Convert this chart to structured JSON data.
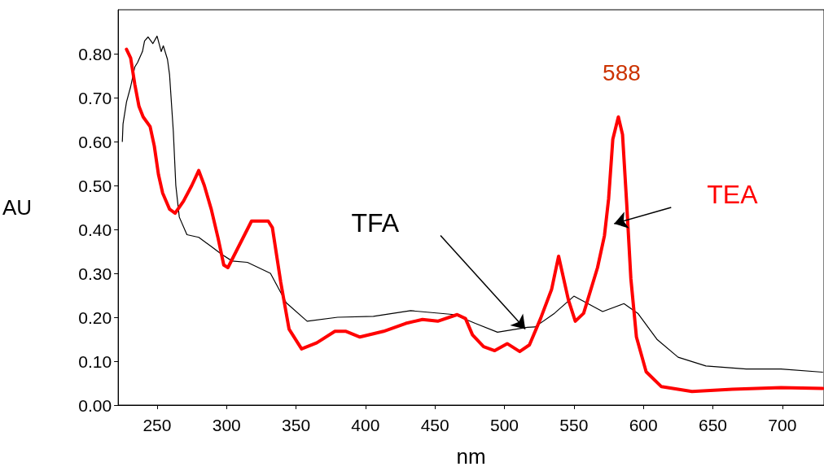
{
  "chart_data": {
    "type": "line",
    "xlabel": "nm",
    "ylabel": "AU",
    "xlim": [
      222,
      730
    ],
    "ylim": [
      0,
      0.9
    ],
    "xticks": [
      250,
      300,
      350,
      400,
      450,
      500,
      550,
      600,
      650,
      700
    ],
    "yticks": [
      {
        "value": 0,
        "label": "0.00"
      },
      {
        "value": 0.1,
        "label": "0.10"
      },
      {
        "value": 0.2,
        "label": "0.20"
      },
      {
        "value": 0.3,
        "label": "0.30"
      },
      {
        "value": 0.4,
        "label": "0.40"
      },
      {
        "value": 0.5,
        "label": "0.50"
      },
      {
        "value": 0.6,
        "label": "0.60"
      },
      {
        "value": 0.7,
        "label": "0.70"
      },
      {
        "value": 0.8,
        "label": "0.80"
      }
    ],
    "grid": false,
    "marker": "none",
    "line_style": "solid",
    "series": [
      {
        "name": "TFA",
        "color": "#000000",
        "x": [
          225,
          225.5,
          228,
          231,
          234,
          236,
          239.5,
          241,
          243.5,
          247,
          250,
          253,
          254.5,
          257.5,
          259,
          261.7,
          263.5,
          266,
          271.5,
          280,
          289,
          296.6,
          304,
          315,
          331.6,
          343,
          358,
          380,
          405.7,
          432.5,
          464,
          479,
          495,
          516.5,
          522,
          536,
          550,
          559,
          570.7,
          586,
          596,
          610,
          625,
          645,
          674,
          699,
          729
        ],
        "values": [
          0.6,
          0.64,
          0.69,
          0.725,
          0.77,
          0.78,
          0.805,
          0.829,
          0.838,
          0.823,
          0.84,
          0.805,
          0.818,
          0.787,
          0.752,
          0.623,
          0.5,
          0.428,
          0.388,
          0.382,
          0.361,
          0.343,
          0.328,
          0.325,
          0.3,
          0.233,
          0.191,
          0.2,
          0.202,
          0.215,
          0.206,
          0.186,
          0.166,
          0.177,
          0.178,
          0.209,
          0.248,
          0.233,
          0.213,
          0.231,
          0.209,
          0.149,
          0.109,
          0.089,
          0.082,
          0.082,
          0.075
        ]
      },
      {
        "name": "TEA",
        "color": "#ff0000",
        "x": [
          228,
          231,
          234,
          237,
          240,
          245,
          248,
          251,
          254,
          259,
          263,
          269,
          275,
          280,
          284,
          289,
          294,
          298,
          301,
          318,
          330,
          333,
          339,
          345,
          354,
          365,
          378,
          386,
          396,
          413,
          429,
          441,
          452,
          466,
          472,
          477,
          485,
          493,
          502,
          511,
          518,
          526,
          534,
          539,
          546,
          551,
          557,
          567,
          572,
          575,
          578,
          582,
          585,
          588,
          591,
          595,
          602,
          613,
          635,
          664,
          699,
          729
        ],
        "values": [
          0.81,
          0.79,
          0.73,
          0.68,
          0.656,
          0.634,
          0.59,
          0.525,
          0.483,
          0.446,
          0.437,
          0.464,
          0.5,
          0.534,
          0.5,
          0.446,
          0.379,
          0.319,
          0.313,
          0.419,
          0.419,
          0.404,
          0.28,
          0.173,
          0.128,
          0.142,
          0.168,
          0.168,
          0.155,
          0.168,
          0.186,
          0.195,
          0.191,
          0.206,
          0.197,
          0.16,
          0.133,
          0.124,
          0.14,
          0.122,
          0.137,
          0.197,
          0.264,
          0.339,
          0.24,
          0.191,
          0.209,
          0.313,
          0.386,
          0.47,
          0.605,
          0.656,
          0.616,
          0.459,
          0.288,
          0.155,
          0.076,
          0.042,
          0.031,
          0.036,
          0.04,
          0.038
        ]
      }
    ],
    "annotations": [
      "588"
    ]
  }
}
